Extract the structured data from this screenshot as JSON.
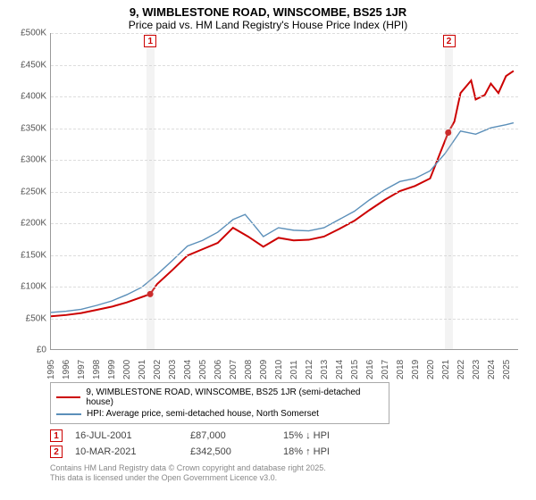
{
  "title_line1": "9, WIMBLESTONE ROAD, WINSCOMBE, BS25 1JR",
  "title_line2": "Price paid vs. HM Land Registry's House Price Index (HPI)",
  "chart": {
    "type": "line",
    "x_years": [
      1995,
      1996,
      1997,
      1998,
      1999,
      2000,
      2001,
      2002,
      2003,
      2004,
      2005,
      2006,
      2007,
      2008,
      2009,
      2010,
      2011,
      2012,
      2013,
      2014,
      2015,
      2016,
      2017,
      2018,
      2019,
      2020,
      2021,
      2022,
      2023,
      2024,
      2025
    ],
    "x_min": 1995,
    "x_max": 2025.8,
    "ylim": [
      0,
      500000
    ],
    "ytick_step": 50000,
    "y_tick_labels": [
      "£0",
      "£50K",
      "£100K",
      "£150K",
      "£200K",
      "£250K",
      "£300K",
      "£350K",
      "£400K",
      "£450K",
      "£500K"
    ],
    "grid_color": "#dddddd",
    "background_color": "#ffffff",
    "series": [
      {
        "name": "property",
        "label": "9, WIMBLESTONE ROAD, WINSCOMBE, BS25 1JR (semi-detached house)",
        "color": "#cc0000",
        "width": 2,
        "points": [
          [
            1995,
            52000
          ],
          [
            1996,
            54000
          ],
          [
            1997,
            57000
          ],
          [
            1998,
            62000
          ],
          [
            1999,
            67000
          ],
          [
            2000,
            74000
          ],
          [
            2001.54,
            87000
          ],
          [
            2002,
            103000
          ],
          [
            2003,
            125000
          ],
          [
            2004,
            148000
          ],
          [
            2005,
            158000
          ],
          [
            2006,
            168000
          ],
          [
            2007,
            192000
          ],
          [
            2008,
            178000
          ],
          [
            2009,
            162000
          ],
          [
            2010,
            176000
          ],
          [
            2011,
            172000
          ],
          [
            2012,
            173000
          ],
          [
            2013,
            178000
          ],
          [
            2014,
            190000
          ],
          [
            2015,
            203000
          ],
          [
            2016,
            220000
          ],
          [
            2017,
            236000
          ],
          [
            2018,
            250000
          ],
          [
            2019,
            258000
          ],
          [
            2020,
            270000
          ],
          [
            2021.19,
            342500
          ],
          [
            2021.6,
            360000
          ],
          [
            2022,
            405000
          ],
          [
            2022.7,
            425000
          ],
          [
            2023,
            395000
          ],
          [
            2023.6,
            402000
          ],
          [
            2024,
            420000
          ],
          [
            2024.5,
            405000
          ],
          [
            2025,
            432000
          ],
          [
            2025.5,
            440000
          ]
        ]
      },
      {
        "name": "hpi",
        "label": "HPI: Average price, semi-detached house, North Somerset",
        "color": "#5b8fb9",
        "width": 1.4,
        "points": [
          [
            1995,
            58000
          ],
          [
            1996,
            60000
          ],
          [
            1997,
            63000
          ],
          [
            1998,
            69000
          ],
          [
            1999,
            76000
          ],
          [
            2000,
            86000
          ],
          [
            2001,
            98000
          ],
          [
            2002,
            118000
          ],
          [
            2003,
            140000
          ],
          [
            2004,
            163000
          ],
          [
            2005,
            172000
          ],
          [
            2006,
            185000
          ],
          [
            2007,
            205000
          ],
          [
            2007.8,
            213000
          ],
          [
            2008.5,
            193000
          ],
          [
            2009,
            178000
          ],
          [
            2010,
            192000
          ],
          [
            2011,
            188000
          ],
          [
            2012,
            187000
          ],
          [
            2013,
            192000
          ],
          [
            2014,
            205000
          ],
          [
            2015,
            218000
          ],
          [
            2016,
            236000
          ],
          [
            2017,
            252000
          ],
          [
            2018,
            265000
          ],
          [
            2019,
            270000
          ],
          [
            2020,
            282000
          ],
          [
            2021,
            310000
          ],
          [
            2022,
            345000
          ],
          [
            2023,
            340000
          ],
          [
            2024,
            350000
          ],
          [
            2025,
            355000
          ],
          [
            2025.5,
            358000
          ]
        ]
      }
    ],
    "sale_bands": [
      {
        "idx": "1",
        "year": 2001.54,
        "band_width_years": 0.55
      },
      {
        "idx": "2",
        "year": 2021.19,
        "band_width_years": 0.55
      }
    ]
  },
  "legend": [
    {
      "color": "#cc0000",
      "label": "9, WIMBLESTONE ROAD, WINSCOMBE, BS25 1JR (semi-detached house)"
    },
    {
      "color": "#5b8fb9",
      "label": "HPI: Average price, semi-detached house, North Somerset"
    }
  ],
  "sales": [
    {
      "idx": "1",
      "date": "16-JUL-2001",
      "price": "£87,000",
      "delta": "15% ↓ HPI"
    },
    {
      "idx": "2",
      "date": "10-MAR-2021",
      "price": "£342,500",
      "delta": "18% ↑ HPI"
    }
  ],
  "attribution": [
    "Contains HM Land Registry data © Crown copyright and database right 2025.",
    "This data is licensed under the Open Government Licence v3.0."
  ]
}
